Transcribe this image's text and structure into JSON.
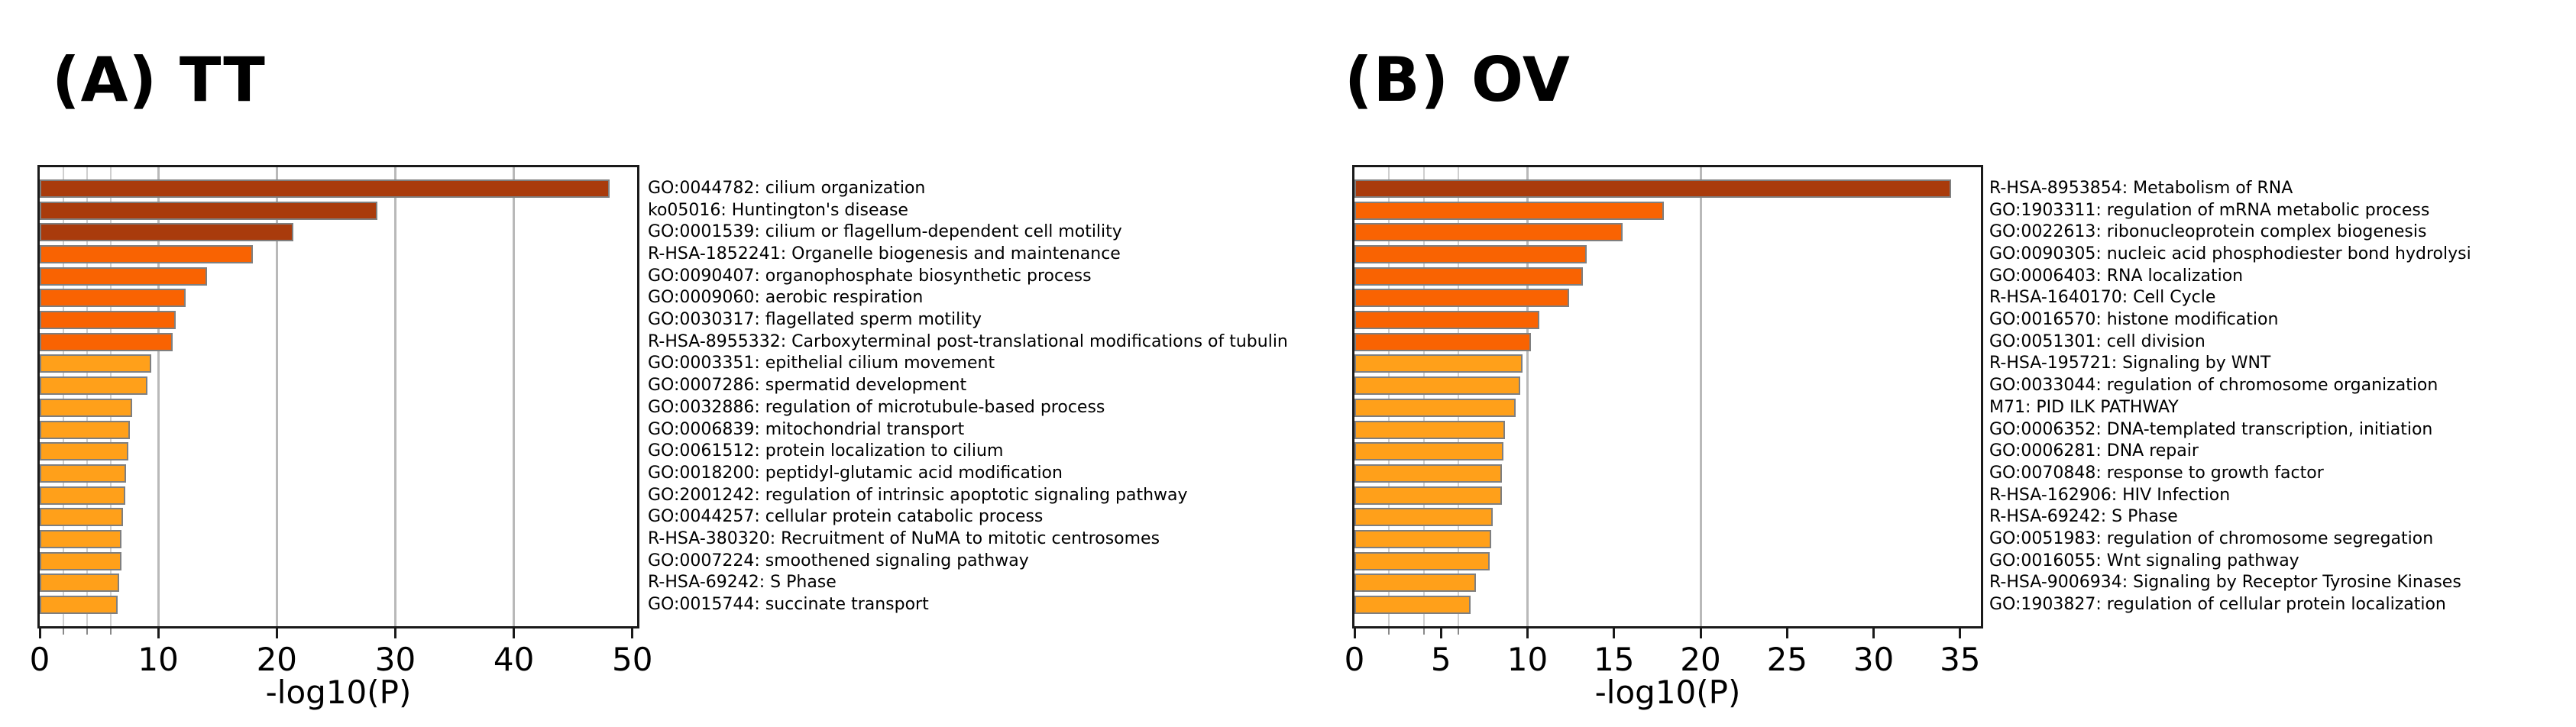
{
  "figure_caption_labels": {
    "panel_a": "(A) TT",
    "panel_b": "(B) OV"
  },
  "chart_data": [
    {
      "type": "bar",
      "orientation": "horizontal",
      "panel_label": "(A) TT",
      "xlabel": "-log10(P)",
      "xlim": [
        0,
        50.4
      ],
      "xticks": [
        0,
        10,
        20,
        30,
        40,
        50
      ],
      "minor_gridlines": [
        2,
        4,
        6
      ],
      "major_gridlines": [
        10,
        20,
        30,
        40
      ],
      "grid": true,
      "legend": "none",
      "categories": [
        "GO:0044782: cilium organization",
        "ko05016: Huntington's disease",
        "GO:0001539: cilium or flagellum-dependent cell motility",
        "R-HSA-1852241: Organelle biogenesis and maintenance",
        "GO:0090407: organophosphate biosynthetic process",
        "GO:0009060: aerobic respiration",
        "GO:0030317: flagellated sperm motility",
        "R-HSA-8955332: Carboxyterminal post-translational modifications of tubulin",
        "GO:0003351: epithelial cilium movement",
        "GO:0007286: spermatid development",
        "GO:0032886: regulation of microtubule-based process",
        "GO:0006839: mitochondrial transport",
        "GO:0061512: protein localization to cilium",
        "GO:0018200: peptidyl-glutamic acid modification",
        "GO:2001242: regulation of intrinsic apoptotic signaling pathway",
        "GO:0044257: cellular protein catabolic process",
        "R-HSA-380320: Recruitment of NuMA to mitotic centrosomes",
        "GO:0007224: smoothened signaling pathway",
        "R-HSA-69242: S Phase",
        "GO:0015744: succinate transport"
      ],
      "values": [
        48.1,
        28.5,
        21.4,
        18.0,
        14.1,
        12.3,
        11.5,
        11.2,
        9.4,
        9.1,
        7.8,
        7.6,
        7.5,
        7.3,
        7.2,
        7.0,
        6.9,
        6.9,
        6.7,
        6.6
      ]
    },
    {
      "type": "bar",
      "orientation": "horizontal",
      "panel_label": "(B) OV",
      "xlabel": "-log10(P)",
      "xlim": [
        0,
        36.2
      ],
      "xticks": [
        0,
        5,
        10,
        15,
        20,
        25,
        30,
        35
      ],
      "minor_gridlines": [
        2,
        4,
        6
      ],
      "major_gridlines": [
        10,
        20
      ],
      "grid": true,
      "legend": "none",
      "categories": [
        "R-HSA-8953854: Metabolism of RNA",
        "GO:1903311: regulation of mRNA metabolic process",
        "GO:0022613: ribonucleoprotein complex biogenesis",
        "GO:0090305: nucleic acid phosphodiester bond hydrolysi",
        "GO:0006403: RNA localization",
        "R-HSA-1640170: Cell Cycle",
        "GO:0016570: histone modification",
        "GO:0051301: cell division",
        "R-HSA-195721: Signaling by WNT",
        "GO:0033044: regulation of chromosome organization",
        "M71: PID ILK PATHWAY",
        "GO:0006352: DNA-templated transcription, initiation",
        "GO:0006281: DNA repair",
        "GO:0070848: response to growth factor",
        "R-HSA-162906: HIV Infection",
        "R-HSA-69242: S Phase",
        "GO:0051983: regulation of chromosome segregation",
        "GO:0016055: Wnt signaling pathway",
        "R-HSA-9006934: Signaling by Receptor Tyrosine Kinases",
        "GO:1903827: regulation of cellular protein localization"
      ],
      "values": [
        34.5,
        17.9,
        15.5,
        13.4,
        13.2,
        12.4,
        10.7,
        10.2,
        9.7,
        9.6,
        9.3,
        8.7,
        8.6,
        8.5,
        8.5,
        8.0,
        7.9,
        7.8,
        7.0,
        6.7
      ]
    }
  ],
  "style": {
    "bar_color_bins": {
      "description": "bar fill by -log10(P) value",
      "thresholds": [
        20,
        10
      ],
      "colors": [
        "#A93B0C",
        "#F96302",
        "#FFA01A"
      ]
    },
    "bar_border_color": "#7f7f7f",
    "frame_color": "#1a1a1a",
    "minor_grid_color": "#cfcfcf",
    "major_grid_color": "#b9b9b9"
  }
}
